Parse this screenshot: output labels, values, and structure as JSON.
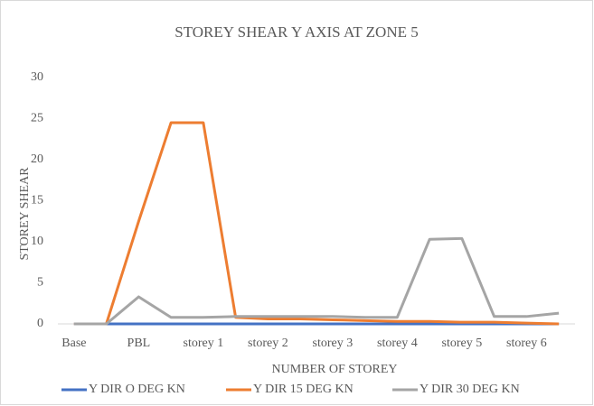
{
  "chart_data": {
    "type": "line",
    "title": "STOREY SHEAR Y AXIS AT ZONE 5",
    "x_label": "NUMBER OF STOREY",
    "y_label": "STOREY SHEAR",
    "categories": [
      "Base",
      null,
      "PBL",
      null,
      "storey 1",
      null,
      "storey 2",
      null,
      "storey 3",
      null,
      "storey 4",
      null,
      "storey 5",
      null,
      "storey 6",
      null
    ],
    "series": [
      {
        "name": "Y DIR O DEG KN",
        "color": "#4472c4",
        "values": [
          0,
          0,
          0,
          0,
          0,
          0,
          0,
          0,
          0,
          0,
          0,
          0,
          0,
          0,
          0,
          0
        ]
      },
      {
        "name": "Y DIR 15 DEG  KN",
        "color": "#ed7d31",
        "values": [
          0,
          0,
          12.5,
          24.5,
          24.5,
          0.8,
          0.6,
          0.6,
          0.5,
          0.4,
          0.3,
          0.3,
          0.2,
          0.2,
          0.1,
          0
        ]
      },
      {
        "name": "Y DIR 30 DEG KN",
        "color": "#a5a5a5",
        "values": [
          0,
          0,
          3.3,
          0.8,
          0.8,
          0.9,
          0.9,
          0.9,
          0.9,
          0.8,
          0.8,
          10.3,
          10.4,
          0.9,
          0.9,
          1.3
        ]
      }
    ],
    "ylim": [
      0,
      30
    ],
    "yticks": [
      0,
      5,
      10,
      15,
      20,
      25,
      30
    ],
    "legend": "bottom"
  }
}
